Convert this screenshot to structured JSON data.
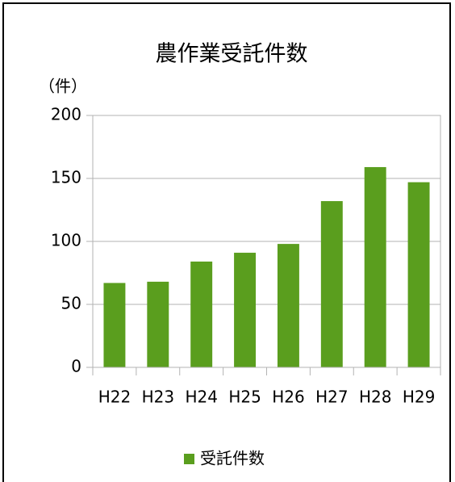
{
  "chart_data": {
    "type": "bar",
    "title": "農作業受託件数",
    "y_label": "（件）",
    "categories": [
      "H22",
      "H23",
      "H24",
      "H25",
      "H26",
      "H27",
      "H28",
      "H29"
    ],
    "series": [
      {
        "name": "受託件数",
        "color": "#5a9e1e",
        "values": [
          67,
          68,
          84,
          91,
          98,
          132,
          159,
          147
        ]
      }
    ],
    "ylim": [
      0,
      200
    ],
    "yticks": [
      0,
      50,
      100,
      150,
      200
    ],
    "grid": true,
    "legend": "bottom"
  }
}
